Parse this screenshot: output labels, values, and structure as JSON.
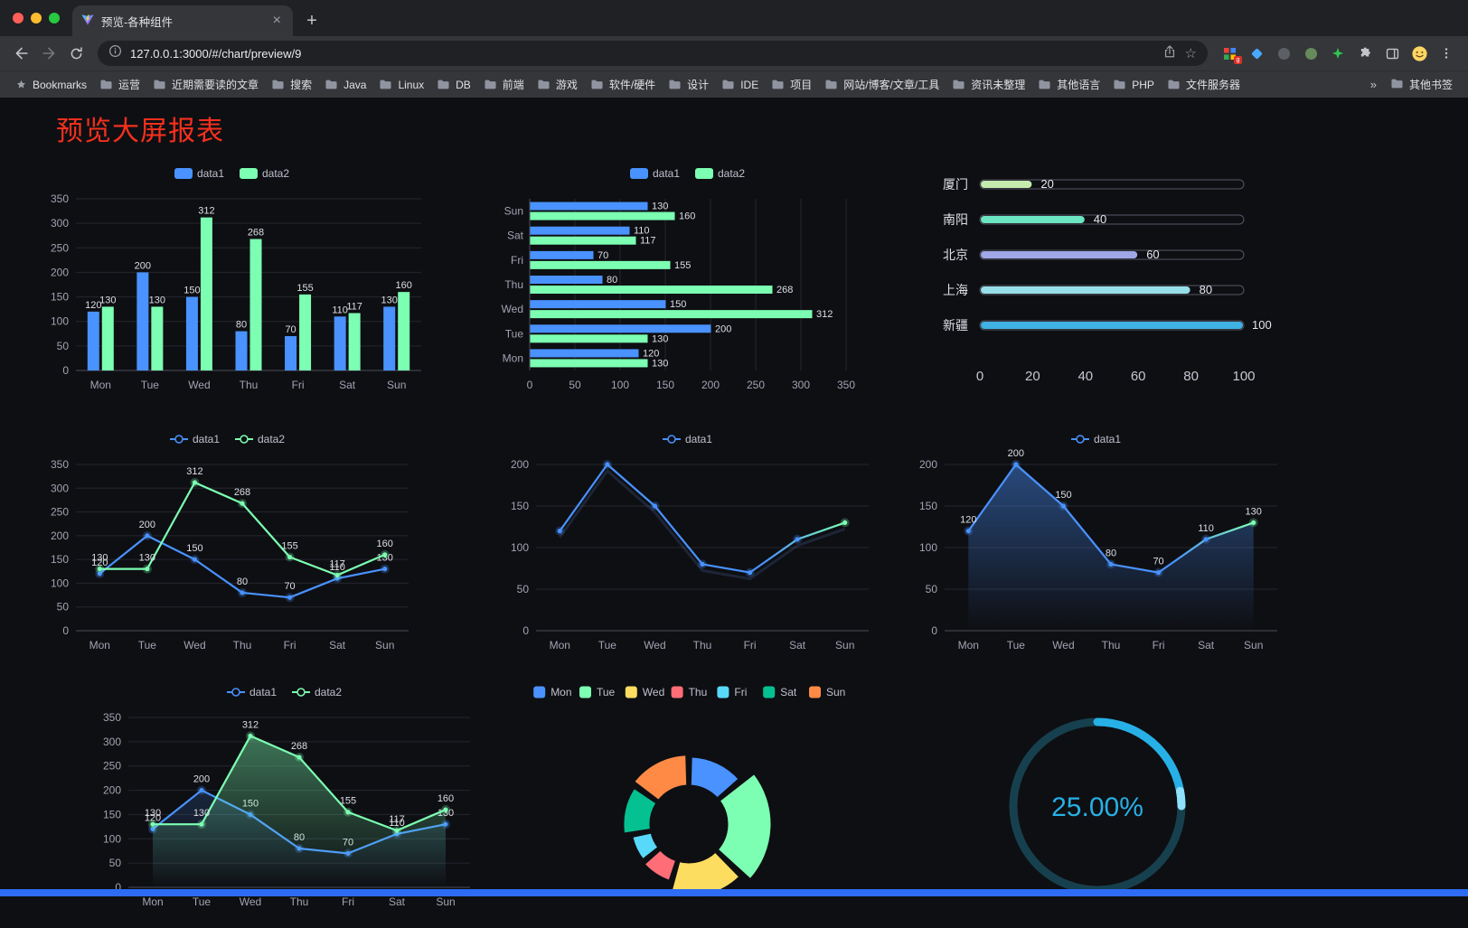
{
  "browser": {
    "tab_title": "预览-各种组件",
    "url": "127.0.0.1:3000/#/chart/preview/9",
    "bookmarks_label": "Bookmarks",
    "bookmarks": [
      "运营",
      "近期需要读的文章",
      "搜索",
      "Java",
      "Linux",
      "DB",
      "前端",
      "游戏",
      "软件/硬件",
      "设计",
      "IDE",
      "项目",
      "网站/博客/文章/工具",
      "资讯未整理",
      "其他语言",
      "PHP",
      "文件服务器"
    ],
    "overflow_chevron": "»",
    "other_bookmarks_label": "其他书签"
  },
  "page": {
    "title": "预览大屏报表",
    "title_color": "#f5301d",
    "background": "#0e0f13",
    "footer_color": "#2e6cf6"
  },
  "chart_data": [
    {
      "id": "bar-grouped",
      "type": "bar",
      "categories": [
        "Mon",
        "Tue",
        "Wed",
        "Thu",
        "Fri",
        "Sat",
        "Sun"
      ],
      "series": [
        {
          "name": "data1",
          "color": "#4992ff",
          "values": [
            120,
            200,
            150,
            80,
            70,
            110,
            130
          ]
        },
        {
          "name": "data2",
          "color": "#7cffb2",
          "values": [
            130,
            130,
            312,
            268,
            155,
            117,
            160
          ]
        }
      ],
      "ylim": [
        0,
        350
      ],
      "ytick_step": 50,
      "legend_position": "top",
      "value_labels": true,
      "grid": true
    },
    {
      "id": "bar-horizontal",
      "type": "hbar",
      "categories": [
        "Mon",
        "Tue",
        "Wed",
        "Thu",
        "Fri",
        "Sat",
        "Sun"
      ],
      "display_order": "Sun-top",
      "series": [
        {
          "name": "data1",
          "color": "#4992ff",
          "values": [
            120,
            200,
            150,
            80,
            70,
            110,
            130
          ]
        },
        {
          "name": "data2",
          "color": "#7cffb2",
          "values": [
            130,
            130,
            312,
            268,
            155,
            117,
            160
          ]
        }
      ],
      "xlim": [
        0,
        350
      ],
      "xtick_step": 50,
      "legend_position": "top",
      "value_labels": true,
      "grid": true
    },
    {
      "id": "progress-bars",
      "type": "progress",
      "max": 100,
      "xticks": [
        0,
        20,
        40,
        60,
        80,
        100
      ],
      "items": [
        {
          "label": "厦门",
          "value": 20,
          "color": "#c4ebad"
        },
        {
          "label": "南阳",
          "value": 40,
          "color": "#6be6c1"
        },
        {
          "label": "北京",
          "value": 60,
          "color": "#a0a7e6"
        },
        {
          "label": "上海",
          "value": 80,
          "color": "#96dee8"
        },
        {
          "label": "新疆",
          "value": 100,
          "color": "#3fb1e3"
        }
      ]
    },
    {
      "id": "line-two-series",
      "type": "line",
      "categories": [
        "Mon",
        "Tue",
        "Wed",
        "Thu",
        "Fri",
        "Sat",
        "Sun"
      ],
      "series": [
        {
          "name": "data1",
          "color": "#4992ff",
          "values": [
            120,
            200,
            150,
            80,
            70,
            110,
            130
          ]
        },
        {
          "name": "data2",
          "color": "#7cffb2",
          "values": [
            130,
            130,
            312,
            268,
            155,
            117,
            160
          ]
        }
      ],
      "ylim": [
        0,
        350
      ],
      "ytick_step": 50,
      "legend_position": "top",
      "value_labels": true,
      "grid": true
    },
    {
      "id": "line-gradient",
      "type": "line",
      "categories": [
        "Mon",
        "Tue",
        "Wed",
        "Thu",
        "Fri",
        "Sat",
        "Sun"
      ],
      "series": [
        {
          "name": "data1",
          "color": "#4992ff",
          "end_color": "#7cffb2",
          "shadow": true,
          "values": [
            120,
            200,
            150,
            80,
            70,
            110,
            130
          ]
        }
      ],
      "ylim": [
        0,
        200
      ],
      "ytick_step": 50,
      "legend_position": "top",
      "value_labels": false,
      "grid": true
    },
    {
      "id": "line-area",
      "type": "line",
      "categories": [
        "Mon",
        "Tue",
        "Wed",
        "Thu",
        "Fri",
        "Sat",
        "Sun"
      ],
      "series": [
        {
          "name": "data1",
          "color": "#4992ff",
          "end_color": "#7cffb2",
          "area": true,
          "area_opacity": 0.45,
          "values": [
            120,
            200,
            150,
            80,
            70,
            110,
            130
          ]
        }
      ],
      "ylim": [
        0,
        200
      ],
      "ytick_step": 50,
      "legend_position": "top",
      "value_labels": true,
      "grid": true
    },
    {
      "id": "line-two-series-area",
      "type": "line",
      "categories": [
        "Mon",
        "Tue",
        "Wed",
        "Thu",
        "Fri",
        "Sat",
        "Sun"
      ],
      "series": [
        {
          "name": "data1",
          "color": "#4992ff",
          "area": true,
          "area_opacity": 0.18,
          "values": [
            120,
            200,
            150,
            80,
            70,
            110,
            130
          ]
        },
        {
          "name": "data2",
          "color": "#7cffb2",
          "area": true,
          "area_opacity": 0.42,
          "values": [
            130,
            130,
            312,
            268,
            155,
            117,
            160
          ]
        }
      ],
      "ylim": [
        0,
        350
      ],
      "ytick_step": 50,
      "legend_position": "top",
      "value_labels": true,
      "grid": true
    },
    {
      "id": "rose-donut",
      "type": "pie",
      "rose": true,
      "legend_position": "top",
      "slices": [
        {
          "label": "Mon",
          "value": 120,
          "color": "#4992ff"
        },
        {
          "label": "Tue",
          "value": 200,
          "color": "#7cffb2"
        },
        {
          "label": "Wed",
          "value": 150,
          "color": "#fddd60"
        },
        {
          "label": "Thu",
          "value": 80,
          "color": "#ff6e76"
        },
        {
          "label": "Fri",
          "value": 70,
          "color": "#58d9f9"
        },
        {
          "label": "Sat",
          "value": 110,
          "color": "#05c091"
        },
        {
          "label": "Sun",
          "value": 130,
          "color": "#ff8a45"
        }
      ]
    },
    {
      "id": "gauge-progress",
      "type": "gauge",
      "value_text": "25.00%",
      "percent": 25,
      "color": "#27b0e6",
      "tip_color": "#8fe0fb",
      "track_color": "#17404e"
    }
  ]
}
